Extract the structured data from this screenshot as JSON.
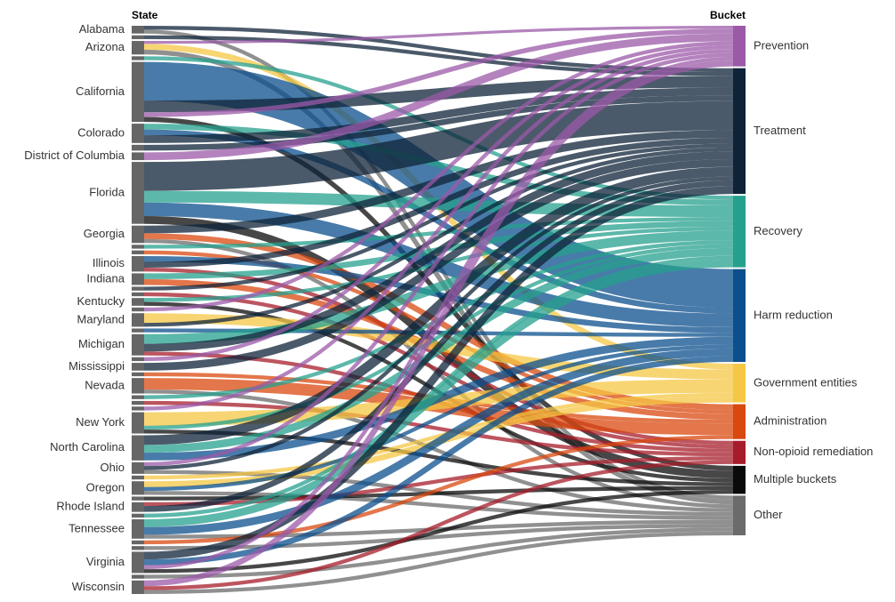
{
  "chart_data": {
    "type": "sankey",
    "left_header": "State",
    "right_header": "Bucket",
    "node_color": "#666666",
    "states": [
      "Alabama",
      null,
      "Arizona",
      null,
      "California",
      "Colorado",
      null,
      "District of Columbia",
      "Florida",
      "Georgia",
      null,
      null,
      "Illinois",
      "Indiana",
      null,
      null,
      "Kentucky",
      null,
      "Maryland",
      null,
      "Michigan",
      null,
      "Mississippi",
      null,
      "Nevada",
      null,
      null,
      null,
      "New York",
      "North Carolina",
      "Ohio",
      null,
      "Oregon",
      null,
      "Rhode Island",
      null,
      "Tennessee",
      null,
      null,
      "Virginia",
      null,
      "Wisconsin"
    ],
    "buckets": [
      {
        "name": "Prevention",
        "color": "#9b59a8"
      },
      {
        "name": "Treatment",
        "color": "#0f2338"
      },
      {
        "name": "Recovery",
        "color": "#26a08e"
      },
      {
        "name": "Harm reduction",
        "color": "#0b4f8c"
      },
      {
        "name": "Government entities",
        "color": "#f6c744"
      },
      {
        "name": "Administration",
        "color": "#d9480f"
      },
      {
        "name": "Non-opioid remediation",
        "color": "#a61c2a"
      },
      {
        "name": "Multiple buckets",
        "color": "#0a0a0a"
      },
      {
        "name": "Other",
        "color": "#6b6b6b"
      }
    ],
    "links": [
      [
        0,
        1,
        4
      ],
      [
        0,
        8,
        4
      ],
      [
        1,
        1,
        4
      ],
      [
        2,
        0,
        3
      ],
      [
        2,
        4,
        6
      ],
      [
        2,
        8,
        5
      ],
      [
        3,
        2,
        4
      ],
      [
        4,
        3,
        40
      ],
      [
        4,
        1,
        12
      ],
      [
        4,
        0,
        5
      ],
      [
        4,
        7,
        5
      ],
      [
        5,
        2,
        6
      ],
      [
        5,
        3,
        6
      ],
      [
        5,
        1,
        8
      ],
      [
        6,
        1,
        6
      ],
      [
        7,
        0,
        8
      ],
      [
        8,
        1,
        30
      ],
      [
        8,
        2,
        12
      ],
      [
        8,
        3,
        14
      ],
      [
        8,
        7,
        8
      ],
      [
        9,
        1,
        8
      ],
      [
        9,
        5,
        6
      ],
      [
        9,
        8,
        4
      ],
      [
        10,
        2,
        4
      ],
      [
        11,
        5,
        4
      ],
      [
        12,
        3,
        6
      ],
      [
        12,
        1,
        6
      ],
      [
        12,
        6,
        4
      ],
      [
        13,
        2,
        6
      ],
      [
        13,
        5,
        6
      ],
      [
        14,
        1,
        4
      ],
      [
        15,
        6,
        4
      ],
      [
        16,
        2,
        4
      ],
      [
        16,
        7,
        4
      ],
      [
        17,
        0,
        4
      ],
      [
        18,
        4,
        10
      ],
      [
        18,
        1,
        4
      ],
      [
        19,
        3,
        4
      ],
      [
        20,
        2,
        10
      ],
      [
        20,
        1,
        8
      ],
      [
        20,
        6,
        4
      ],
      [
        21,
        0,
        4
      ],
      [
        22,
        1,
        8
      ],
      [
        23,
        5,
        4
      ],
      [
        24,
        5,
        12
      ],
      [
        24,
        8,
        4
      ],
      [
        25,
        2,
        4
      ],
      [
        26,
        6,
        4
      ],
      [
        27,
        0,
        4
      ],
      [
        28,
        4,
        14
      ],
      [
        28,
        2,
        4
      ],
      [
        28,
        7,
        4
      ],
      [
        29,
        1,
        10
      ],
      [
        29,
        2,
        8
      ],
      [
        29,
        3,
        8
      ],
      [
        30,
        0,
        4
      ],
      [
        30,
        1,
        4
      ],
      [
        30,
        8,
        4
      ],
      [
        31,
        4,
        4
      ],
      [
        32,
        4,
        6
      ],
      [
        32,
        3,
        4
      ],
      [
        32,
        8,
        4
      ],
      [
        33,
        7,
        4
      ],
      [
        34,
        6,
        4
      ],
      [
        34,
        1,
        6
      ],
      [
        35,
        2,
        4
      ],
      [
        36,
        2,
        8
      ],
      [
        36,
        3,
        8
      ],
      [
        36,
        8,
        4
      ],
      [
        37,
        5,
        4
      ],
      [
        38,
        8,
        4
      ],
      [
        39,
        1,
        8
      ],
      [
        39,
        3,
        6
      ],
      [
        39,
        0,
        4
      ],
      [
        39,
        7,
        4
      ],
      [
        40,
        8,
        4
      ],
      [
        41,
        0,
        6
      ],
      [
        41,
        6,
        4
      ],
      [
        41,
        8,
        4
      ]
    ]
  }
}
